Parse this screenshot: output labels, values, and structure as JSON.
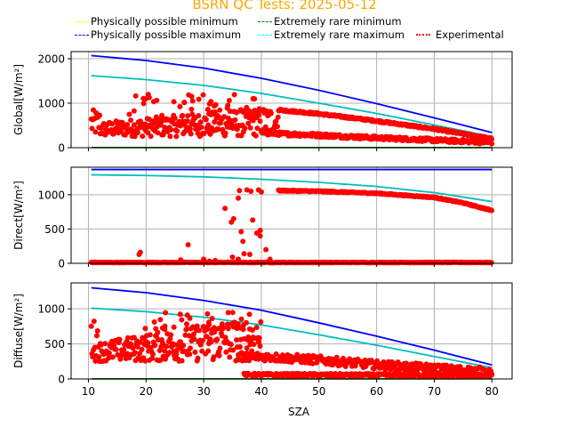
{
  "title": "BSRN QC Tests: 2025-05-12",
  "colors": {
    "title": "#ffa500",
    "phys_min": "#ffff00",
    "phys_max": "#0000ff",
    "rare_min": "#008000",
    "rare_max": "#00bfbf",
    "experimental": "#ff0000",
    "grid": "#b0b0b0"
  },
  "legend": [
    {
      "label": "Physically possible minimum",
      "key": "phys_min",
      "style": "dashed"
    },
    {
      "label": "Extremely rare minimum",
      "key": "rare_min",
      "style": "dashed"
    },
    {
      "label": "Physically possible maximum",
      "key": "phys_max",
      "style": "dashed"
    },
    {
      "label": "Extremely rare maximum",
      "key": "rare_max",
      "style": "dashed"
    },
    {
      "label": "Experimental",
      "key": "experimental",
      "style": "dotted"
    }
  ],
  "chart_data": [
    {
      "type": "scatter",
      "name": "global",
      "ylabel": "Global[W/m²]",
      "xlabel": "",
      "xlim": [
        7,
        83.5
      ],
      "ylim": [
        0,
        2160
      ],
      "yticks": [
        0,
        1000,
        2000
      ],
      "xticks": [
        10,
        20,
        30,
        40,
        50,
        60,
        70,
        80
      ],
      "grid": true,
      "series": [
        {
          "name": "Physically possible maximum",
          "x": [
            10.5,
            20,
            30,
            40,
            50,
            60,
            70,
            80
          ],
          "y": [
            2070,
            1960,
            1790,
            1560,
            1290,
            990,
            670,
            340
          ]
        },
        {
          "name": "Extremely rare maximum",
          "x": [
            10.5,
            20,
            30,
            40,
            50,
            60,
            70,
            80
          ],
          "y": [
            1620,
            1530,
            1400,
            1220,
            1000,
            770,
            510,
            250
          ]
        },
        {
          "name": "Extremely rare minimum",
          "x": [
            10.5,
            80
          ],
          "y": [
            2,
            2
          ]
        },
        {
          "name": "Experimental band upper",
          "x": [
            43,
            50,
            60,
            70,
            80
          ],
          "y": [
            850,
            760,
            600,
            420,
            200
          ]
        },
        {
          "name": "Experimental band lower",
          "x": [
            40,
            50,
            60,
            70,
            80
          ],
          "y": [
            330,
            280,
            220,
            170,
            120
          ]
        }
      ]
    },
    {
      "type": "scatter",
      "name": "direct",
      "ylabel": "Direct[W/m²]",
      "xlabel": "",
      "xlim": [
        7,
        83.5
      ],
      "ylim": [
        0,
        1400
      ],
      "yticks": [
        0,
        500,
        1000
      ],
      "xticks": [
        10,
        20,
        30,
        40,
        50,
        60,
        70,
        80
      ],
      "grid": true,
      "series": [
        {
          "name": "Physically possible maximum",
          "x": [
            10.5,
            80
          ],
          "y": [
            1367,
            1367
          ]
        },
        {
          "name": "Extremely rare maximum",
          "x": [
            10.5,
            20,
            30,
            40,
            50,
            60,
            70,
            80
          ],
          "y": [
            1290,
            1280,
            1260,
            1225,
            1180,
            1120,
            1030,
            900
          ]
        },
        {
          "name": "Experimental upper",
          "x": [
            43,
            50,
            60,
            70,
            75,
            80
          ],
          "y": [
            1060,
            1050,
            1020,
            960,
            880,
            770
          ]
        },
        {
          "name": "Experimental zero",
          "x": [
            10.5,
            80
          ],
          "y": [
            10,
            10
          ]
        }
      ]
    },
    {
      "type": "scatter",
      "name": "diffuse",
      "ylabel": "Diffuse[W/m²]",
      "xlabel": "SZA",
      "xlim": [
        7,
        83.5
      ],
      "ylim": [
        0,
        1370
      ],
      "yticks": [
        0,
        500,
        1000
      ],
      "xticks": [
        10,
        20,
        30,
        40,
        50,
        60,
        70,
        80
      ],
      "grid": true,
      "series": [
        {
          "name": "Physically possible maximum",
          "x": [
            10.5,
            20,
            30,
            40,
            50,
            60,
            70,
            80
          ],
          "y": [
            1300,
            1230,
            1120,
            980,
            800,
            610,
            410,
            200
          ]
        },
        {
          "name": "Extremely rare maximum",
          "x": [
            10.5,
            20,
            30,
            40,
            50,
            60,
            70,
            80
          ],
          "y": [
            1010,
            960,
            880,
            770,
            630,
            480,
            320,
            160
          ]
        },
        {
          "name": "Extremely rare minimum",
          "x": [
            10.5,
            80
          ],
          "y": [
            2,
            2
          ]
        },
        {
          "name": "Experimental mid",
          "x": [
            40,
            50,
            60,
            70,
            80
          ],
          "y": [
            320,
            270,
            200,
            150,
            100
          ]
        },
        {
          "name": "Experimental low",
          "x": [
            40,
            80
          ],
          "y": [
            40,
            30
          ]
        }
      ]
    }
  ]
}
